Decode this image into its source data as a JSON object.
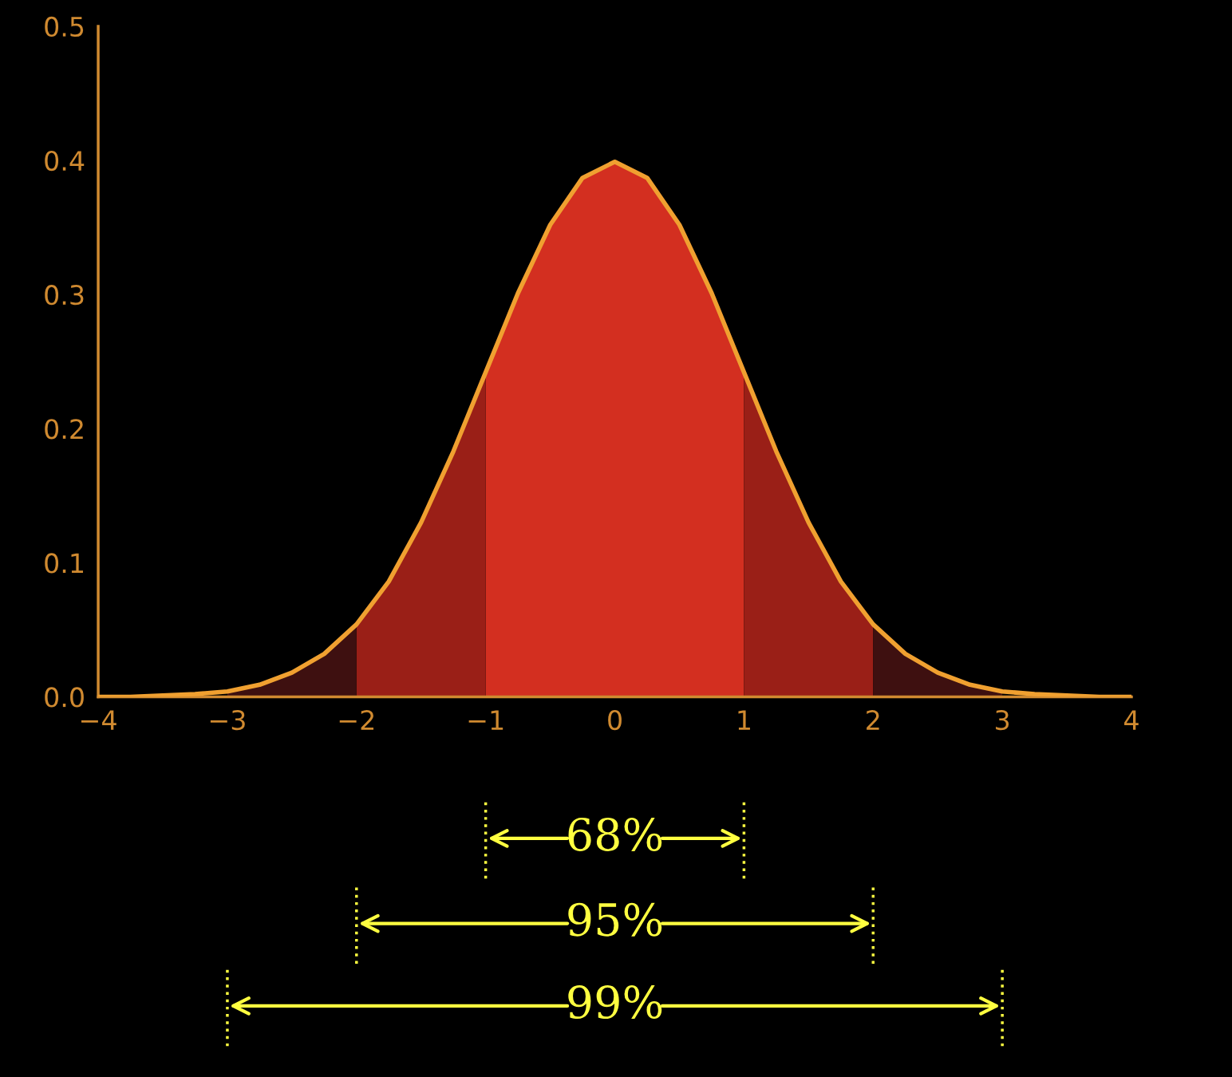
{
  "chart_data": {
    "type": "line",
    "xlim": [
      -4,
      4
    ],
    "ylim": [
      0,
      0.5
    ],
    "xticks": [
      {
        "value": -4,
        "label": "−4"
      },
      {
        "value": -3,
        "label": "−3"
      },
      {
        "value": -2,
        "label": "−2"
      },
      {
        "value": -1,
        "label": "−1"
      },
      0,
      1,
      2,
      3,
      4
    ],
    "yticks": [
      {
        "value": 0,
        "label": "0.0"
      },
      0.1,
      0.2,
      0.3,
      0.4,
      0.5
    ],
    "grid": false,
    "marker": "none",
    "line_style": "solid",
    "series": [
      {
        "type": "area",
        "color": "#d32f20",
        "x": [
          -1,
          -0.75,
          -0.5,
          -0.25,
          0,
          0.25,
          0.5,
          0.75,
          1
        ],
        "values": [
          0.242,
          0.301,
          0.352,
          0.387,
          0.399,
          0.387,
          0.352,
          0.301,
          0.242
        ]
      },
      {
        "type": "area",
        "color": "#9a1f17",
        "x": [
          -2,
          -1.75,
          -1.5,
          -1.25,
          -1
        ],
        "values": [
          0.054,
          0.086,
          0.13,
          0.183,
          0.242
        ]
      },
      {
        "type": "area",
        "color": "#9a1f17",
        "x": [
          1,
          1.25,
          1.5,
          1.75,
          2
        ],
        "values": [
          0.242,
          0.183,
          0.13,
          0.086,
          0.054
        ]
      },
      {
        "type": "area",
        "color": "#3e1010",
        "x": [
          -3,
          -2.75,
          -2.5,
          -2.25,
          -2
        ],
        "values": [
          0.004,
          0.009,
          0.018,
          0.032,
          0.054
        ]
      },
      {
        "type": "area",
        "color": "#3e1010",
        "x": [
          2,
          2.25,
          2.5,
          2.75,
          3
        ],
        "values": [
          0.054,
          0.032,
          0.018,
          0.009,
          0.004
        ]
      },
      {
        "color": "#f0a030",
        "x": [
          -4,
          -3.75,
          -3.5,
          -3.25,
          -3,
          -2.75,
          -2.5,
          -2.25,
          -2,
          -1.75,
          -1.5,
          -1.25,
          -1,
          -0.75,
          -0.5,
          -0.25,
          0,
          0.25,
          0.5,
          0.75,
          1,
          1.25,
          1.5,
          1.75,
          2,
          2.25,
          2.5,
          2.75,
          3,
          3.25,
          3.5,
          3.75,
          4
        ],
        "values": [
          0.0,
          0.0,
          0.001,
          0.002,
          0.004,
          0.009,
          0.018,
          0.032,
          0.054,
          0.086,
          0.13,
          0.183,
          0.242,
          0.301,
          0.352,
          0.387,
          0.399,
          0.387,
          0.352,
          0.301,
          0.242,
          0.183,
          0.13,
          0.086,
          0.054,
          0.032,
          0.018,
          0.009,
          0.004,
          0.002,
          0.001,
          0.0,
          0.0
        ]
      }
    ],
    "annotations": [
      "68%",
      "95%",
      "99%"
    ]
  }
}
